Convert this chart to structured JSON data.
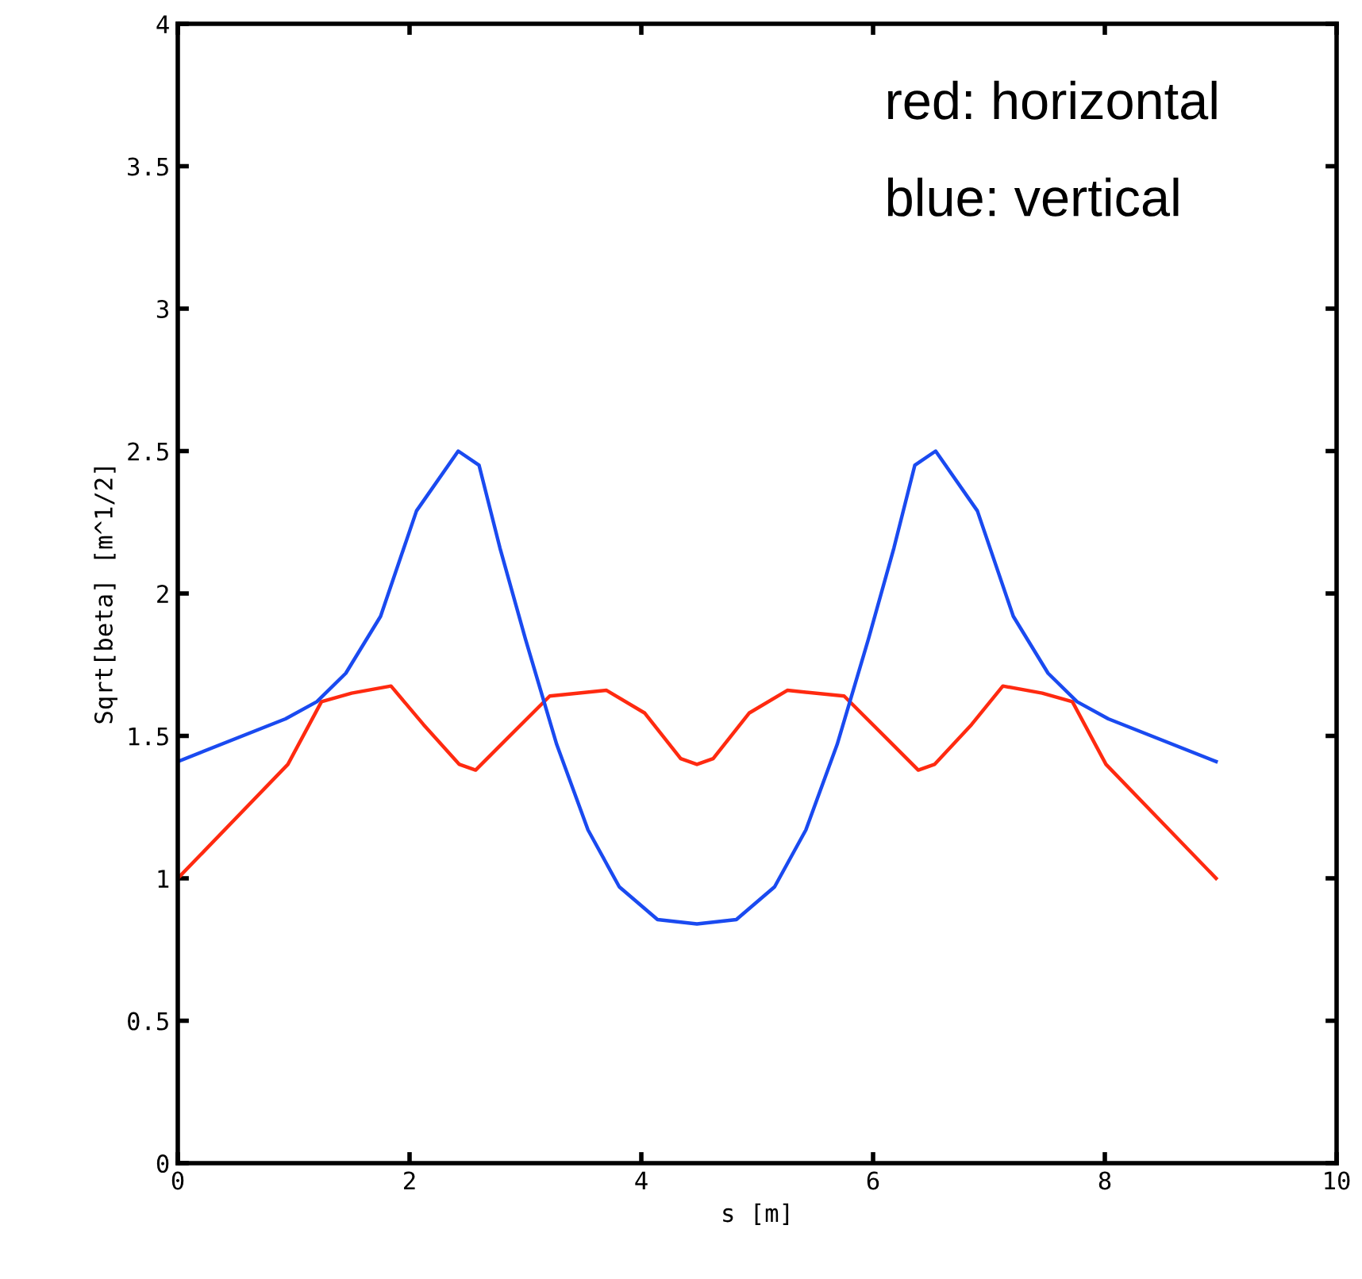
{
  "chart_data": {
    "type": "line",
    "xlabel": "s [m]",
    "ylabel": "Sqrt[beta] [m^1/2]",
    "xlim": [
      0,
      10
    ],
    "xticks": [
      0,
      2,
      4,
      6,
      8,
      {
        "value": 10,
        "label": "10"
      }
    ],
    "ylim": [
      0,
      4
    ],
    "yticks": [
      0,
      0.5,
      1,
      1.5,
      2,
      2.5,
      3,
      3.5,
      4
    ],
    "grid": false,
    "legend": false,
    "annotations": [
      "red: horizontal",
      "blue: vertical"
    ],
    "series": [
      {
        "color": "#ff2a10",
        "x": [
          0,
          0.95,
          1.24,
          1.5,
          1.84,
          2.12,
          2.43,
          2.57,
          2.84,
          3.21,
          3.7,
          4.03,
          4.34,
          4.48,
          4.62,
          4.93,
          5.26,
          5.75,
          6.12,
          6.39,
          6.53,
          6.85,
          7.12,
          7.46,
          7.72,
          8.01,
          8.96
        ],
        "values": [
          1.0,
          1.4,
          1.62,
          1.65,
          1.675,
          1.54,
          1.4,
          1.38,
          1.49,
          1.64,
          1.66,
          1.58,
          1.42,
          1.4,
          1.42,
          1.58,
          1.66,
          1.64,
          1.49,
          1.38,
          1.4,
          1.54,
          1.675,
          1.65,
          1.62,
          1.4,
          1.0
        ]
      },
      {
        "color": "#1a4af0",
        "x": [
          0,
          0.93,
          1.2,
          1.45,
          1.75,
          2.06,
          2.42,
          2.6,
          2.78,
          3.0,
          3.27,
          3.54,
          3.81,
          4.14,
          4.48,
          4.82,
          5.15,
          5.42,
          5.69,
          5.96,
          6.18,
          6.36,
          6.54,
          6.9,
          7.21,
          7.51,
          7.76,
          8.03,
          8.96
        ],
        "values": [
          1.41,
          1.56,
          1.62,
          1.72,
          1.92,
          2.29,
          2.5,
          2.45,
          2.16,
          1.84,
          1.47,
          1.17,
          0.97,
          0.855,
          0.84,
          0.855,
          0.97,
          1.17,
          1.47,
          1.84,
          2.16,
          2.45,
          2.5,
          2.29,
          1.92,
          1.72,
          1.62,
          1.56,
          1.41
        ]
      }
    ]
  }
}
